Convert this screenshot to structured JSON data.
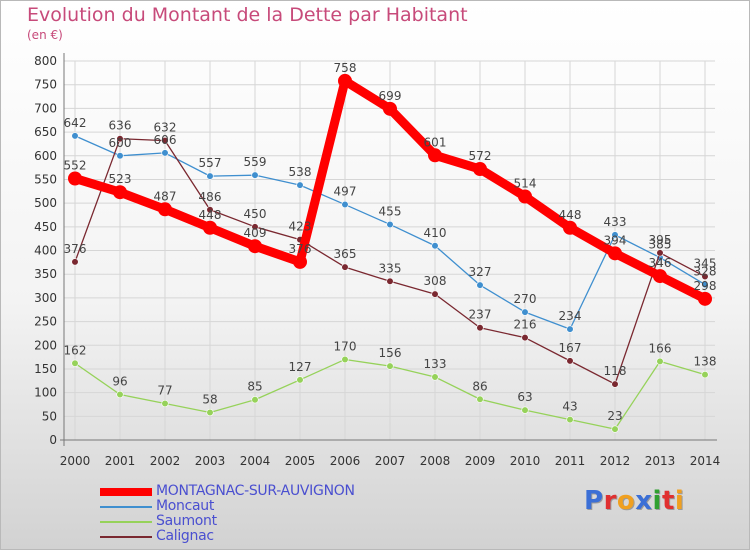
{
  "chart_data": {
    "type": "line",
    "title": "Evolution du Montant de la Dette par Habitant",
    "subtitle": "(en €)",
    "x": [
      "2000",
      "2001",
      "2002",
      "2003",
      "2004",
      "2005",
      "2006",
      "2007",
      "2008",
      "2009",
      "2010",
      "2011",
      "2012",
      "2013",
      "2014"
    ],
    "ylim": [
      0,
      800
    ],
    "yticks": [
      0,
      50,
      100,
      150,
      200,
      250,
      300,
      350,
      400,
      450,
      500,
      550,
      600,
      650,
      700,
      750,
      800
    ],
    "grid": true,
    "legend_position": "bottom-left",
    "series": [
      {
        "name": "MONTAGNAC-SUR-AUVIGNON",
        "color": "#ff0000",
        "values": [
          552,
          523,
          487,
          448,
          409,
          376,
          758,
          699,
          601,
          572,
          514,
          448,
          394,
          346,
          298
        ],
        "labels": [
          "552",
          "523",
          "487",
          "448",
          "409",
          "376",
          "758",
          "699",
          "601",
          "572",
          "514",
          "448",
          "394",
          "346",
          "298"
        ]
      },
      {
        "name": "Moncaut",
        "color": "#3f8fcf",
        "values": [
          642,
          600,
          606,
          557,
          559,
          538,
          497,
          455,
          410,
          327,
          270,
          234,
          433,
          385,
          328
        ],
        "labels": [
          "642",
          "600",
          "606",
          "557",
          "559",
          "538",
          "497",
          "455",
          "410",
          "327",
          "270",
          "234",
          "433",
          "385",
          "328"
        ]
      },
      {
        "name": "Saumont",
        "color": "#96d25a",
        "values": [
          162,
          96,
          77,
          58,
          85,
          127,
          170,
          156,
          133,
          86,
          63,
          43,
          23,
          166,
          138
        ],
        "labels": [
          "162",
          "96",
          "77",
          "58",
          "85",
          "127",
          "170",
          "156",
          "133",
          "86",
          "63",
          "43",
          "23",
          "166",
          "138"
        ]
      },
      {
        "name": "Calignac",
        "color": "#7a2830",
        "values": [
          376,
          636,
          632,
          486,
          450,
          423,
          365,
          335,
          308,
          237,
          216,
          167,
          118,
          395,
          345
        ],
        "labels": [
          "376",
          "636",
          "632",
          "486",
          "450",
          "423",
          "365",
          "335",
          "308",
          "237",
          "216",
          "167",
          "118",
          "395",
          "345"
        ]
      }
    ]
  },
  "logo": {
    "letters": [
      "P",
      "r",
      "o",
      "x",
      "i",
      "t",
      "i"
    ],
    "colors": [
      "#3b6fd6",
      "#e03030",
      "#f0a020",
      "#3b6fd6",
      "#30a030",
      "#e03030",
      "#f0a020"
    ]
  }
}
